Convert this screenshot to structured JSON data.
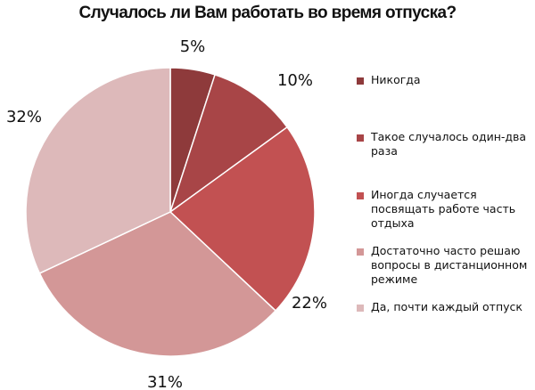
{
  "chart_data": {
    "type": "pie",
    "title": "Случалось ли Вам работать во время отпуска?",
    "categories": [
      "Никогда",
      "Такое случалось один-два раза",
      "Иногда случается посвящать работе часть отдыха",
      "Достаточно часто решаю вопросы в дистанционном режиме",
      "Да, почти каждый отпуск"
    ],
    "values": [
      5,
      10,
      22,
      31,
      32
    ],
    "value_labels": [
      "5%",
      "10%",
      "22%",
      "31%",
      "32%"
    ],
    "colors": [
      "#8e3a3b",
      "#a84547",
      "#c25152",
      "#d39797",
      "#ddb9ba"
    ],
    "legend_position": "right",
    "start_angle": "12 o'clock",
    "direction": "clockwise"
  }
}
